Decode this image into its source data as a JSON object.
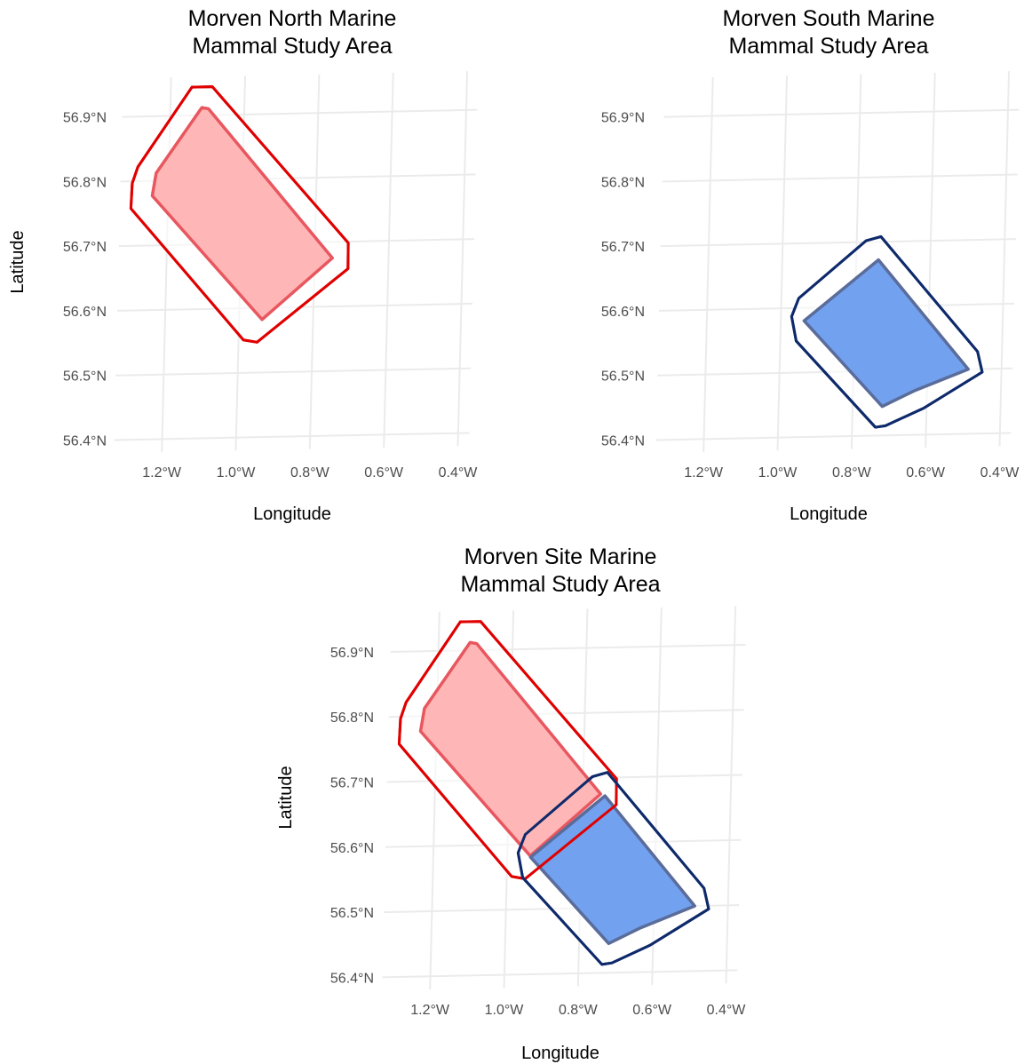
{
  "chart_data": [
    {
      "type": "map",
      "title_lines": [
        "Morven North Marine",
        "Mammal Study Area"
      ],
      "xlabel": "Longitude",
      "ylabel": "Latitude",
      "x_ticks": [
        "1.2°W",
        "1.0°W",
        "0.8°W",
        "0.6°W",
        "0.4°W"
      ],
      "y_ticks": [
        "56.9°N",
        "56.8°N",
        "56.7°N",
        "56.6°N",
        "56.5°N",
        "56.4°N"
      ],
      "xlim": [
        -1.33,
        -0.37
      ],
      "ylim": [
        56.38,
        56.96
      ],
      "areas": [
        {
          "id": "north",
          "fill": "#ffb0b0",
          "stroke": "#e8575f",
          "buffer_stroke": "#e00000",
          "site_polygon": [
            [
              -1.115,
              56.912
            ],
            [
              -1.097,
              56.91
            ],
            [
              -0.752,
              56.675
            ],
            [
              -0.938,
              56.582
            ],
            [
              -1.243,
              56.777
            ],
            [
              -1.234,
              56.812
            ]
          ],
          "buffer_polygon": [
            [
              -1.143,
              56.944
            ],
            [
              -1.088,
              56.944
            ],
            [
              -0.71,
              56.698
            ],
            [
              -0.709,
              56.658
            ],
            [
              -0.95,
              56.547
            ],
            [
              -0.987,
              56.551
            ],
            [
              -1.3,
              56.758
            ],
            [
              -1.298,
              56.797
            ],
            [
              -1.284,
              56.822
            ]
          ]
        }
      ]
    },
    {
      "type": "map",
      "title_lines": [
        "Morven South Marine",
        "Mammal Study Area"
      ],
      "xlabel": "Longitude",
      "ylabel": "",
      "x_ticks": [
        "1.2°W",
        "1.0°W",
        "0.8°W",
        "0.6°W",
        "0.4°W"
      ],
      "y_ticks": [
        "56.9°N",
        "56.8°N",
        "56.7°N",
        "56.6°N",
        "56.5°N",
        "56.4°N"
      ],
      "xlim": [
        -1.33,
        -0.37
      ],
      "ylim": [
        56.38,
        56.96
      ],
      "areas": [
        {
          "id": "south",
          "fill": "#6699ee",
          "stroke": "#5a6c9a",
          "buffer_stroke": "#0e2a6b",
          "site_polygon": [
            [
              -0.74,
              56.672
            ],
            [
              -0.49,
              56.5
            ],
            [
              -0.635,
              56.468
            ],
            [
              -0.72,
              56.445
            ],
            [
              -0.937,
              56.58
            ]
          ],
          "buffer_polygon": [
            [
              -0.775,
              56.702
            ],
            [
              -0.735,
              56.708
            ],
            [
              -0.466,
              56.527
            ],
            [
              -0.452,
              56.495
            ],
            [
              -0.608,
              56.441
            ],
            [
              -0.71,
              56.415
            ],
            [
              -0.737,
              56.413
            ],
            [
              -0.957,
              56.549
            ],
            [
              -0.971,
              56.587
            ],
            [
              -0.953,
              56.615
            ]
          ]
        }
      ]
    },
    {
      "type": "map",
      "title_lines": [
        "Morven Site Marine",
        "Mammal Study Area"
      ],
      "xlabel": "Longitude",
      "ylabel": "Latitude",
      "x_ticks": [
        "1.2°W",
        "1.0°W",
        "0.8°W",
        "0.6°W",
        "0.4°W"
      ],
      "y_ticks": [
        "56.9°N",
        "56.8°N",
        "56.7°N",
        "56.6°N",
        "56.5°N",
        "56.4°N"
      ],
      "xlim": [
        -1.33,
        -0.37
      ],
      "ylim": [
        56.38,
        56.96
      ],
      "areas": [
        {
          "id": "north",
          "fill": "#ffb0b0",
          "stroke": "#e8575f",
          "buffer_stroke": "#e00000",
          "site_polygon": [
            [
              -1.115,
              56.912
            ],
            [
              -1.097,
              56.91
            ],
            [
              -0.752,
              56.675
            ],
            [
              -0.938,
              56.582
            ],
            [
              -1.243,
              56.777
            ],
            [
              -1.234,
              56.812
            ]
          ],
          "buffer_polygon": [
            [
              -1.143,
              56.944
            ],
            [
              -1.088,
              56.944
            ],
            [
              -0.71,
              56.698
            ],
            [
              -0.709,
              56.658
            ],
            [
              -0.95,
              56.547
            ],
            [
              -0.987,
              56.551
            ],
            [
              -1.3,
              56.758
            ],
            [
              -1.298,
              56.797
            ],
            [
              -1.284,
              56.822
            ]
          ]
        },
        {
          "id": "south",
          "fill": "#6699ee",
          "stroke": "#5a6c9a",
          "buffer_stroke": "#0e2a6b",
          "site_polygon": [
            [
              -0.74,
              56.672
            ],
            [
              -0.49,
              56.5
            ],
            [
              -0.635,
              56.468
            ],
            [
              -0.72,
              56.445
            ],
            [
              -0.937,
              56.58
            ]
          ],
          "buffer_polygon": [
            [
              -0.775,
              56.702
            ],
            [
              -0.735,
              56.708
            ],
            [
              -0.466,
              56.527
            ],
            [
              -0.452,
              56.495
            ],
            [
              -0.608,
              56.441
            ],
            [
              -0.71,
              56.415
            ],
            [
              -0.737,
              56.413
            ],
            [
              -0.957,
              56.549
            ],
            [
              -0.971,
              56.587
            ],
            [
              -0.953,
              56.615
            ]
          ]
        }
      ]
    }
  ]
}
